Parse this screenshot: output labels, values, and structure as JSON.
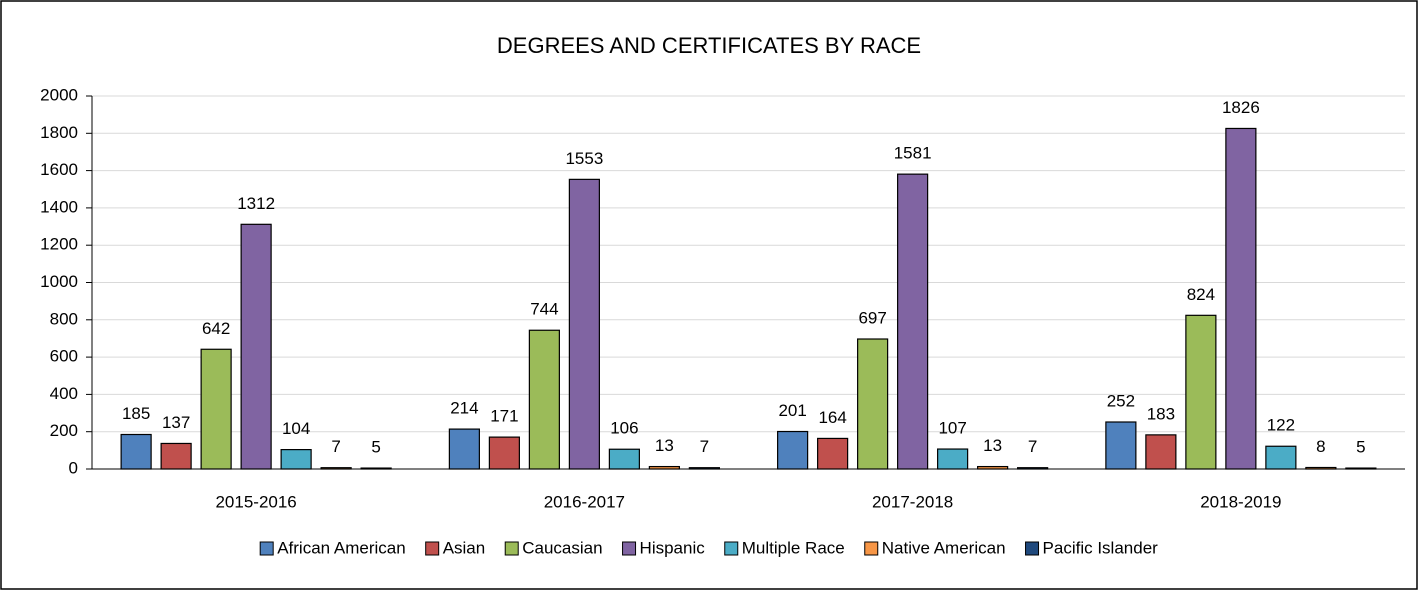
{
  "chart_data": {
    "type": "bar",
    "title": "DEGREES AND CERTIFICATES BY RACE",
    "categories": [
      "2015-2016",
      "2016-2017",
      "2017-2018",
      "2018-2019"
    ],
    "series": [
      {
        "name": "African American",
        "color": "#4f81bd",
        "values": [
          185,
          214,
          201,
          252
        ]
      },
      {
        "name": "Asian",
        "color": "#c0504d",
        "values": [
          137,
          171,
          164,
          183
        ]
      },
      {
        "name": "Caucasian",
        "color": "#9bbb59",
        "values": [
          642,
          744,
          697,
          824
        ]
      },
      {
        "name": "Hispanic",
        "color": "#8064a2",
        "values": [
          1312,
          1553,
          1581,
          1826
        ]
      },
      {
        "name": "Multiple Race",
        "color": "#4bacc6",
        "values": [
          104,
          106,
          107,
          122
        ]
      },
      {
        "name": "Native American",
        "color": "#f79646",
        "values": [
          7,
          13,
          13,
          8
        ]
      },
      {
        "name": "Pacific Islander",
        "color": "#1f497d",
        "values": [
          5,
          7,
          7,
          5
        ]
      }
    ],
    "ylim": [
      0,
      2000
    ],
    "yticks": [
      0,
      200,
      400,
      600,
      800,
      1000,
      1200,
      1400,
      1600,
      1800,
      2000
    ],
    "grid": true,
    "legend": "bottom"
  }
}
